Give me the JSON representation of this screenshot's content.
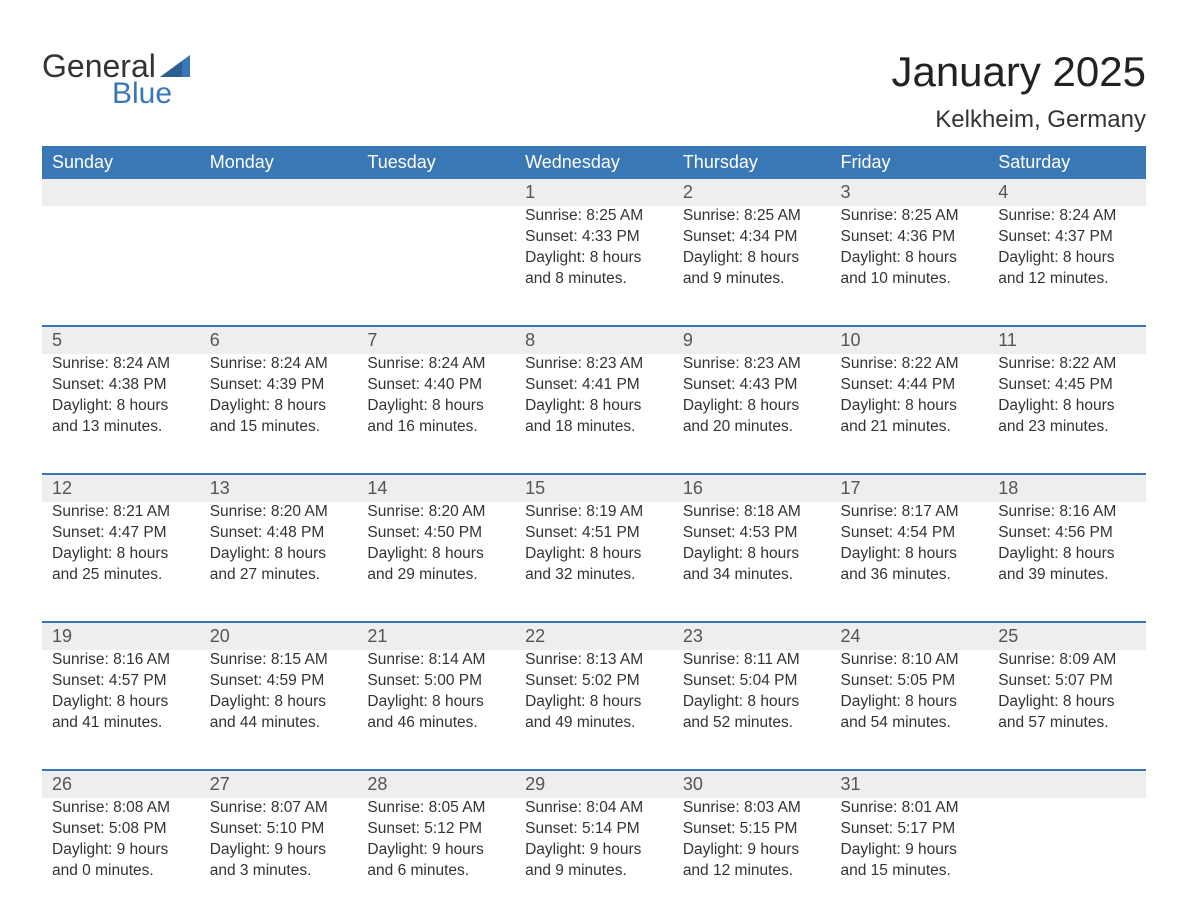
{
  "brand": {
    "word1": "General",
    "word2": "Blue",
    "accent_color": "#3a78b5"
  },
  "title": "January 2025",
  "location": "Kelkheim, Germany",
  "colors": {
    "header_bg": "#3a78b5",
    "header_text": "#ffffff",
    "daynum_bg": "#eeeeee",
    "row_border": "#3a78b5",
    "body_text": "#333333",
    "page_bg": "#ffffff"
  },
  "day_names": [
    "Sunday",
    "Monday",
    "Tuesday",
    "Wednesday",
    "Thursday",
    "Friday",
    "Saturday"
  ],
  "weeks": [
    {
      "nums": [
        "",
        "",
        "",
        "1",
        "2",
        "3",
        "4"
      ],
      "cells": [
        [],
        [],
        [],
        [
          "Sunrise: 8:25 AM",
          "Sunset: 4:33 PM",
          "Daylight: 8 hours",
          "and 8 minutes."
        ],
        [
          "Sunrise: 8:25 AM",
          "Sunset: 4:34 PM",
          "Daylight: 8 hours",
          "and 9 minutes."
        ],
        [
          "Sunrise: 8:25 AM",
          "Sunset: 4:36 PM",
          "Daylight: 8 hours",
          "and 10 minutes."
        ],
        [
          "Sunrise: 8:24 AM",
          "Sunset: 4:37 PM",
          "Daylight: 8 hours",
          "and 12 minutes."
        ]
      ]
    },
    {
      "nums": [
        "5",
        "6",
        "7",
        "8",
        "9",
        "10",
        "11"
      ],
      "cells": [
        [
          "Sunrise: 8:24 AM",
          "Sunset: 4:38 PM",
          "Daylight: 8 hours",
          "and 13 minutes."
        ],
        [
          "Sunrise: 8:24 AM",
          "Sunset: 4:39 PM",
          "Daylight: 8 hours",
          "and 15 minutes."
        ],
        [
          "Sunrise: 8:24 AM",
          "Sunset: 4:40 PM",
          "Daylight: 8 hours",
          "and 16 minutes."
        ],
        [
          "Sunrise: 8:23 AM",
          "Sunset: 4:41 PM",
          "Daylight: 8 hours",
          "and 18 minutes."
        ],
        [
          "Sunrise: 8:23 AM",
          "Sunset: 4:43 PM",
          "Daylight: 8 hours",
          "and 20 minutes."
        ],
        [
          "Sunrise: 8:22 AM",
          "Sunset: 4:44 PM",
          "Daylight: 8 hours",
          "and 21 minutes."
        ],
        [
          "Sunrise: 8:22 AM",
          "Sunset: 4:45 PM",
          "Daylight: 8 hours",
          "and 23 minutes."
        ]
      ]
    },
    {
      "nums": [
        "12",
        "13",
        "14",
        "15",
        "16",
        "17",
        "18"
      ],
      "cells": [
        [
          "Sunrise: 8:21 AM",
          "Sunset: 4:47 PM",
          "Daylight: 8 hours",
          "and 25 minutes."
        ],
        [
          "Sunrise: 8:20 AM",
          "Sunset: 4:48 PM",
          "Daylight: 8 hours",
          "and 27 minutes."
        ],
        [
          "Sunrise: 8:20 AM",
          "Sunset: 4:50 PM",
          "Daylight: 8 hours",
          "and 29 minutes."
        ],
        [
          "Sunrise: 8:19 AM",
          "Sunset: 4:51 PM",
          "Daylight: 8 hours",
          "and 32 minutes."
        ],
        [
          "Sunrise: 8:18 AM",
          "Sunset: 4:53 PM",
          "Daylight: 8 hours",
          "and 34 minutes."
        ],
        [
          "Sunrise: 8:17 AM",
          "Sunset: 4:54 PM",
          "Daylight: 8 hours",
          "and 36 minutes."
        ],
        [
          "Sunrise: 8:16 AM",
          "Sunset: 4:56 PM",
          "Daylight: 8 hours",
          "and 39 minutes."
        ]
      ]
    },
    {
      "nums": [
        "19",
        "20",
        "21",
        "22",
        "23",
        "24",
        "25"
      ],
      "cells": [
        [
          "Sunrise: 8:16 AM",
          "Sunset: 4:57 PM",
          "Daylight: 8 hours",
          "and 41 minutes."
        ],
        [
          "Sunrise: 8:15 AM",
          "Sunset: 4:59 PM",
          "Daylight: 8 hours",
          "and 44 minutes."
        ],
        [
          "Sunrise: 8:14 AM",
          "Sunset: 5:00 PM",
          "Daylight: 8 hours",
          "and 46 minutes."
        ],
        [
          "Sunrise: 8:13 AM",
          "Sunset: 5:02 PM",
          "Daylight: 8 hours",
          "and 49 minutes."
        ],
        [
          "Sunrise: 8:11 AM",
          "Sunset: 5:04 PM",
          "Daylight: 8 hours",
          "and 52 minutes."
        ],
        [
          "Sunrise: 8:10 AM",
          "Sunset: 5:05 PM",
          "Daylight: 8 hours",
          "and 54 minutes."
        ],
        [
          "Sunrise: 8:09 AM",
          "Sunset: 5:07 PM",
          "Daylight: 8 hours",
          "and 57 minutes."
        ]
      ]
    },
    {
      "nums": [
        "26",
        "27",
        "28",
        "29",
        "30",
        "31",
        ""
      ],
      "cells": [
        [
          "Sunrise: 8:08 AM",
          "Sunset: 5:08 PM",
          "Daylight: 9 hours",
          "and 0 minutes."
        ],
        [
          "Sunrise: 8:07 AM",
          "Sunset: 5:10 PM",
          "Daylight: 9 hours",
          "and 3 minutes."
        ],
        [
          "Sunrise: 8:05 AM",
          "Sunset: 5:12 PM",
          "Daylight: 9 hours",
          "and 6 minutes."
        ],
        [
          "Sunrise: 8:04 AM",
          "Sunset: 5:14 PM",
          "Daylight: 9 hours",
          "and 9 minutes."
        ],
        [
          "Sunrise: 8:03 AM",
          "Sunset: 5:15 PM",
          "Daylight: 9 hours",
          "and 12 minutes."
        ],
        [
          "Sunrise: 8:01 AM",
          "Sunset: 5:17 PM",
          "Daylight: 9 hours",
          "and 15 minutes."
        ],
        []
      ]
    }
  ]
}
